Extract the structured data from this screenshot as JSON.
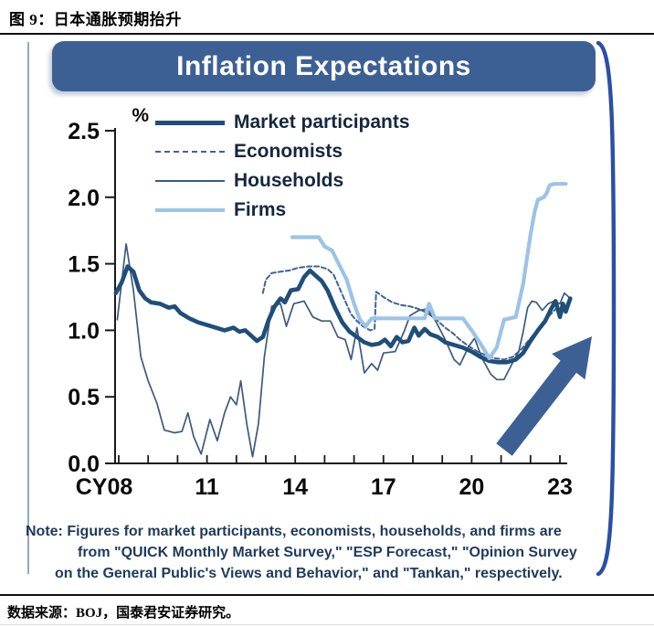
{
  "page": {
    "figure_title": "图 9：日本通胀预期抬升",
    "source_footer": "数据来源：BOJ，国泰君安证券研究。"
  },
  "panel": {
    "header_title": "Inflation Expectations",
    "header_color": "#3d6094",
    "bracket_color": "#2a4fa5"
  },
  "note": {
    "lines": [
      "Note: Figures for market participants, economists, households, and firms are",
      "from \"QUICK Monthly Market Survey,\" \"ESP Forecast,\" \"Opinion Survey",
      "on the General Public's Views and Behavior,\" and \"Tankan,\" respectively."
    ]
  },
  "chart_data": {
    "type": "line",
    "title": "Inflation Expectations",
    "unit_label": "%",
    "ylim": [
      0,
      2.5
    ],
    "xlim": [
      2007.8,
      2023.5
    ],
    "grid": false,
    "legend_position": "top-left-inside",
    "y_ticks": [
      {
        "value": 2.5,
        "label": "2.5"
      },
      {
        "value": 2.0,
        "label": "2.0"
      },
      {
        "value": 1.5,
        "label": "1.5"
      },
      {
        "value": 1.0,
        "label": "1.0"
      },
      {
        "value": 0.5,
        "label": "0.5"
      },
      {
        "value": 0.0,
        "label": "0.0"
      }
    ],
    "x_ticks": {
      "tick_years": [
        2008,
        2009,
        2010,
        2011,
        2012,
        2013,
        2014,
        2015,
        2016,
        2017,
        2018,
        2019,
        2020,
        2021,
        2022,
        2023
      ],
      "labels": [
        {
          "year": 2008,
          "label": "CY08"
        },
        {
          "year": 2011,
          "label": "11"
        },
        {
          "year": 2014,
          "label": "14"
        },
        {
          "year": 2017,
          "label": "17"
        },
        {
          "year": 2020,
          "label": "20"
        },
        {
          "year": 2023,
          "label": "23"
        }
      ]
    },
    "series": [
      {
        "name": "Market participants",
        "source_survey": "QUICK Monthly Market Survey",
        "color": "#1f4e79",
        "width": 4.6,
        "dash": null,
        "points": [
          [
            2007.9,
            1.28
          ],
          [
            2008.1,
            1.36
          ],
          [
            2008.3,
            1.48
          ],
          [
            2008.5,
            1.44
          ],
          [
            2008.7,
            1.3
          ],
          [
            2008.9,
            1.24
          ],
          [
            2009.1,
            1.21
          ],
          [
            2009.4,
            1.2
          ],
          [
            2009.7,
            1.17
          ],
          [
            2009.9,
            1.18
          ],
          [
            2010.1,
            1.13
          ],
          [
            2010.4,
            1.09
          ],
          [
            2010.7,
            1.06
          ],
          [
            2011.0,
            1.04
          ],
          [
            2011.3,
            1.02
          ],
          [
            2011.6,
            1.0
          ],
          [
            2011.9,
            1.02
          ],
          [
            2012.1,
            0.99
          ],
          [
            2012.3,
            1.0
          ],
          [
            2012.5,
            0.96
          ],
          [
            2012.7,
            0.92
          ],
          [
            2012.9,
            0.95
          ],
          [
            2013.1,
            1.08
          ],
          [
            2013.3,
            1.18
          ],
          [
            2013.5,
            1.24
          ],
          [
            2013.65,
            1.21
          ],
          [
            2013.85,
            1.3
          ],
          [
            2014.1,
            1.31
          ],
          [
            2014.3,
            1.4
          ],
          [
            2014.5,
            1.45
          ],
          [
            2014.7,
            1.41
          ],
          [
            2014.9,
            1.37
          ],
          [
            2015.1,
            1.3
          ],
          [
            2015.35,
            1.17
          ],
          [
            2015.6,
            1.06
          ],
          [
            2015.85,
            0.99
          ],
          [
            2016.1,
            0.95
          ],
          [
            2016.35,
            0.91
          ],
          [
            2016.6,
            0.89
          ],
          [
            2016.85,
            0.9
          ],
          [
            2017.05,
            0.93
          ],
          [
            2017.25,
            0.88
          ],
          [
            2017.45,
            0.95
          ],
          [
            2017.65,
            0.91
          ],
          [
            2017.85,
            0.92
          ],
          [
            2018.05,
            1.02
          ],
          [
            2018.2,
            0.96
          ],
          [
            2018.4,
            1.01
          ],
          [
            2018.6,
            0.97
          ],
          [
            2018.85,
            0.95
          ],
          [
            2019.1,
            0.91
          ],
          [
            2019.4,
            0.89
          ],
          [
            2019.7,
            0.87
          ],
          [
            2020.0,
            0.84
          ],
          [
            2020.3,
            0.8
          ],
          [
            2020.6,
            0.77
          ],
          [
            2020.9,
            0.76
          ],
          [
            2021.2,
            0.76
          ],
          [
            2021.5,
            0.78
          ],
          [
            2021.75,
            0.83
          ],
          [
            2022.0,
            0.92
          ],
          [
            2022.25,
            1.0
          ],
          [
            2022.5,
            1.07
          ],
          [
            2022.7,
            1.16
          ],
          [
            2022.85,
            1.22
          ],
          [
            2023.0,
            1.1
          ],
          [
            2023.1,
            1.2
          ],
          [
            2023.2,
            1.14
          ],
          [
            2023.35,
            1.24
          ]
        ]
      },
      {
        "name": "Economists",
        "source_survey": "ESP Forecast",
        "color": "#3e6496",
        "width": 2,
        "dash": "5,3",
        "points": [
          [
            2012.9,
            1.28
          ],
          [
            2013.0,
            1.38
          ],
          [
            2013.2,
            1.43
          ],
          [
            2013.5,
            1.44
          ],
          [
            2013.8,
            1.45
          ],
          [
            2014.1,
            1.47
          ],
          [
            2014.45,
            1.48
          ],
          [
            2014.8,
            1.48
          ],
          [
            2015.1,
            1.46
          ],
          [
            2015.3,
            1.42
          ],
          [
            2015.5,
            1.32
          ],
          [
            2015.7,
            1.22
          ],
          [
            2015.9,
            1.12
          ],
          [
            2016.1,
            1.07
          ],
          [
            2016.3,
            1.03
          ],
          [
            2016.55,
            1.0
          ],
          [
            2016.7,
            1.01
          ],
          [
            2016.75,
            1.29
          ],
          [
            2017.0,
            1.25
          ],
          [
            2017.3,
            1.21
          ],
          [
            2017.6,
            1.19
          ],
          [
            2017.9,
            1.18
          ],
          [
            2018.2,
            1.16
          ],
          [
            2018.5,
            1.13
          ],
          [
            2018.8,
            1.08
          ],
          [
            2019.1,
            1.02
          ],
          [
            2019.35,
            0.98
          ],
          [
            2019.6,
            0.93
          ],
          [
            2019.9,
            0.88
          ],
          [
            2020.2,
            0.84
          ],
          [
            2020.5,
            0.81
          ],
          [
            2020.8,
            0.79
          ],
          [
            2021.1,
            0.78
          ],
          [
            2021.4,
            0.8
          ],
          [
            2021.7,
            0.86
          ],
          [
            2022.0,
            0.94
          ],
          [
            2022.3,
            1.02
          ],
          [
            2022.6,
            1.1
          ],
          [
            2022.9,
            1.17
          ],
          [
            2023.1,
            1.13
          ],
          [
            2023.3,
            1.23
          ]
        ]
      },
      {
        "name": "Households",
        "source_survey": "Opinion Survey on the General Public's Views and Behavior",
        "color": "#3b5a7e",
        "width": 1.7,
        "dash": null,
        "points": [
          [
            2007.95,
            1.08
          ],
          [
            2008.25,
            1.65
          ],
          [
            2008.5,
            1.3
          ],
          [
            2008.75,
            0.8
          ],
          [
            2009.0,
            0.62
          ],
          [
            2009.3,
            0.45
          ],
          [
            2009.55,
            0.25
          ],
          [
            2009.9,
            0.23
          ],
          [
            2010.15,
            0.24
          ],
          [
            2010.35,
            0.38
          ],
          [
            2010.55,
            0.2
          ],
          [
            2010.8,
            0.07
          ],
          [
            2011.1,
            0.33
          ],
          [
            2011.35,
            0.17
          ],
          [
            2011.6,
            0.38
          ],
          [
            2011.8,
            0.5
          ],
          [
            2012.0,
            0.44
          ],
          [
            2012.15,
            0.62
          ],
          [
            2012.35,
            0.3
          ],
          [
            2012.55,
            0.05
          ],
          [
            2012.75,
            0.3
          ],
          [
            2012.95,
            0.8
          ],
          [
            2013.2,
            1.18
          ],
          [
            2013.5,
            1.2
          ],
          [
            2013.7,
            1.03
          ],
          [
            2013.95,
            1.2
          ],
          [
            2014.3,
            1.22
          ],
          [
            2014.6,
            1.1
          ],
          [
            2014.9,
            1.07
          ],
          [
            2015.2,
            1.07
          ],
          [
            2015.45,
            0.95
          ],
          [
            2015.7,
            0.93
          ],
          [
            2015.9,
            0.78
          ],
          [
            2016.1,
            1.02
          ],
          [
            2016.35,
            0.68
          ],
          [
            2016.6,
            0.75
          ],
          [
            2016.8,
            0.7
          ],
          [
            2017.0,
            0.83
          ],
          [
            2017.4,
            0.84
          ],
          [
            2017.7,
            0.99
          ],
          [
            2017.9,
            1.11
          ],
          [
            2018.2,
            1.15
          ],
          [
            2018.5,
            1.16
          ],
          [
            2018.8,
            1.06
          ],
          [
            2019.1,
            0.93
          ],
          [
            2019.4,
            0.78
          ],
          [
            2019.6,
            0.74
          ],
          [
            2019.9,
            0.88
          ],
          [
            2020.1,
            0.94
          ],
          [
            2020.35,
            0.79
          ],
          [
            2020.65,
            0.67
          ],
          [
            2020.85,
            0.63
          ],
          [
            2021.1,
            0.63
          ],
          [
            2021.4,
            0.76
          ],
          [
            2021.6,
            0.84
          ],
          [
            2021.75,
            0.99
          ],
          [
            2021.9,
            1.17
          ],
          [
            2022.05,
            1.22
          ],
          [
            2022.2,
            1.21
          ],
          [
            2022.4,
            1.15
          ],
          [
            2022.6,
            1.2
          ],
          [
            2022.8,
            1.22
          ],
          [
            2023.0,
            1.2
          ],
          [
            2023.15,
            1.28
          ],
          [
            2023.3,
            1.25
          ]
        ]
      },
      {
        "name": "Firms",
        "source_survey": "Tankan",
        "color": "#9dc3e6",
        "width": 4.2,
        "dash": null,
        "points": [
          [
            2013.9,
            1.7
          ],
          [
            2014.8,
            1.7
          ],
          [
            2015.0,
            1.63
          ],
          [
            2015.25,
            1.6
          ],
          [
            2015.5,
            1.49
          ],
          [
            2015.75,
            1.38
          ],
          [
            2016.0,
            1.2
          ],
          [
            2016.2,
            1.08
          ],
          [
            2016.4,
            1.03
          ],
          [
            2016.6,
            1.09
          ],
          [
            2018.4,
            1.09
          ],
          [
            2018.55,
            1.2
          ],
          [
            2018.75,
            1.09
          ],
          [
            2019.7,
            1.09
          ],
          [
            2020.0,
            1.0
          ],
          [
            2020.3,
            0.9
          ],
          [
            2020.6,
            0.79
          ],
          [
            2020.85,
            0.87
          ],
          [
            2021.1,
            1.08
          ],
          [
            2021.5,
            1.1
          ],
          [
            2021.75,
            1.35
          ],
          [
            2021.85,
            1.5
          ],
          [
            2022.0,
            1.72
          ],
          [
            2022.15,
            1.9
          ],
          [
            2022.25,
            1.98
          ],
          [
            2022.45,
            2.0
          ],
          [
            2022.55,
            2.03
          ],
          [
            2022.65,
            2.09
          ],
          [
            2022.8,
            2.1
          ],
          [
            2023.2,
            2.1
          ]
        ]
      }
    ],
    "annotation": {
      "trend_arrow": {
        "meaning": "expectations rising",
        "from": [
          552,
          492
        ],
        "to": [
          648,
          368
        ],
        "color": "#3d6094"
      }
    }
  }
}
